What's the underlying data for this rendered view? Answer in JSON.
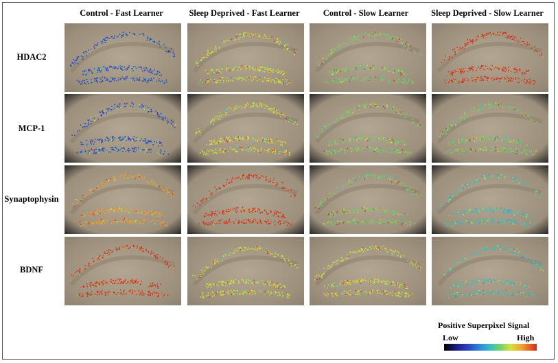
{
  "figure": {
    "column_headers": [
      "Control - Fast Learner",
      "Sleep Deprived - Fast Learner",
      "Control - Slow Learner",
      "Sleep Deprived - Slow Learner"
    ],
    "row_labels": [
      "HDAC2",
      "MCP-1",
      "Synaptophysin",
      "BDNF"
    ],
    "legend": {
      "title": "Positive Superpixel Signal",
      "low_label": "Low",
      "high_label": "High"
    },
    "panel_dominant_signal": [
      [
        "blue",
        "yellow-green",
        "green-red",
        "red"
      ],
      [
        "blue-cyan",
        "yellow-green",
        "green",
        "green-yellow"
      ],
      [
        "orange-red",
        "red",
        "green",
        "cyan"
      ],
      [
        "red",
        "yellow-orange",
        "yellow-green",
        "cyan-green"
      ]
    ],
    "colors": {
      "low": "#1a1a7a",
      "mid": "#35c0c0",
      "high": "#d82a1a",
      "tissue": "#a69a88"
    }
  }
}
